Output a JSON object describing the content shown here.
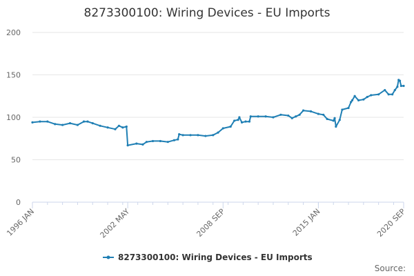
{
  "title": "8273300100: Wiring Devices - EU Imports",
  "credit": "Source:",
  "colors": {
    "series": "#1f7fb4",
    "grid": "#e6e6e6",
    "axis": "#ccd6eb"
  },
  "chart_data": {
    "type": "line",
    "title": "8273300100: Wiring Devices - EU Imports",
    "xlabel": "",
    "ylabel": "",
    "ylim": [
      0,
      200
    ],
    "yticks": [
      0,
      50,
      100,
      150,
      200
    ],
    "xlim": [
      "1996 JAN",
      "2020 SEP"
    ],
    "xticks": [
      "1996 JAN",
      "2002 MAY",
      "2008 SEP",
      "2015 JAN",
      "2020 SEP"
    ],
    "grid": true,
    "legend": "bottom-center",
    "series": [
      {
        "name": "8273300100: Wiring Devices - EU Imports",
        "points": [
          [
            "1996 JAN",
            94
          ],
          [
            "1996 JUL",
            95
          ],
          [
            "1997 JAN",
            95
          ],
          [
            "1997 JUL",
            92
          ],
          [
            "1998 JAN",
            91
          ],
          [
            "1998 JUL",
            93
          ],
          [
            "1999 JAN",
            91
          ],
          [
            "1999 JUN",
            95
          ],
          [
            "1999 SEP",
            95
          ],
          [
            "2000 JAN",
            93
          ],
          [
            "2000 JUL",
            90
          ],
          [
            "2001 JAN",
            88
          ],
          [
            "2001 JUL",
            86
          ],
          [
            "2001 OCT",
            90
          ],
          [
            "2002 JAN",
            88
          ],
          [
            "2002 APR",
            89
          ],
          [
            "2002 MAY",
            67
          ],
          [
            "2002 DEC",
            69
          ],
          [
            "2003 MAY",
            68
          ],
          [
            "2003 AUG",
            71
          ],
          [
            "2004 JAN",
            72
          ],
          [
            "2004 JUL",
            72
          ],
          [
            "2005 JAN",
            71
          ],
          [
            "2005 JUN",
            73
          ],
          [
            "2005 SEP",
            74
          ],
          [
            "2005 OCT",
            80
          ],
          [
            "2006 JAN",
            79
          ],
          [
            "2006 JUL",
            79
          ],
          [
            "2007 JAN",
            79
          ],
          [
            "2007 JUL",
            78
          ],
          [
            "2008 JAN",
            79
          ],
          [
            "2008 MAY",
            82
          ],
          [
            "2008 SEP",
            87
          ],
          [
            "2009 MAR",
            89
          ],
          [
            "2009 JUN",
            96
          ],
          [
            "2009 SEP",
            97
          ],
          [
            "2009 OCT",
            100
          ],
          [
            "2009 DEC",
            94
          ],
          [
            "2010 MAR",
            95
          ],
          [
            "2010 JUN",
            95
          ],
          [
            "2010 JUL",
            101
          ],
          [
            "2011 JAN",
            101
          ],
          [
            "2011 JUL",
            101
          ],
          [
            "2012 JAN",
            100
          ],
          [
            "2012 JUL",
            103
          ],
          [
            "2013 JAN",
            102
          ],
          [
            "2013 APR",
            99
          ],
          [
            "2013 JUL",
            101
          ],
          [
            "2013 OCT",
            103
          ],
          [
            "2014 JAN",
            108
          ],
          [
            "2014 JUL",
            107
          ],
          [
            "2015 JAN",
            104
          ],
          [
            "2015 MAY",
            103
          ],
          [
            "2015 AUG",
            98
          ],
          [
            "2016 JAN",
            96
          ],
          [
            "2016 FEB",
            99
          ],
          [
            "2016 MAR",
            89
          ],
          [
            "2016 JUN",
            97
          ],
          [
            "2016 AUG",
            109
          ],
          [
            "2017 JAN",
            111
          ],
          [
            "2017 MAR",
            118
          ],
          [
            "2017 APR",
            120
          ],
          [
            "2017 JUN",
            125
          ],
          [
            "2017 SEP",
            120
          ],
          [
            "2018 JAN",
            121
          ],
          [
            "2018 APR",
            124
          ],
          [
            "2018 JUL",
            126
          ],
          [
            "2019 JAN",
            127
          ],
          [
            "2019 JUN",
            132
          ],
          [
            "2019 SEP",
            127
          ],
          [
            "2019 DEC",
            127
          ],
          [
            "2020 FEB",
            132
          ],
          [
            "2020 APR",
            136
          ],
          [
            "2020 MAY",
            144
          ],
          [
            "2020 JUN",
            143
          ],
          [
            "2020 JUL",
            137
          ],
          [
            "2020 SEP",
            137
          ]
        ]
      }
    ]
  }
}
